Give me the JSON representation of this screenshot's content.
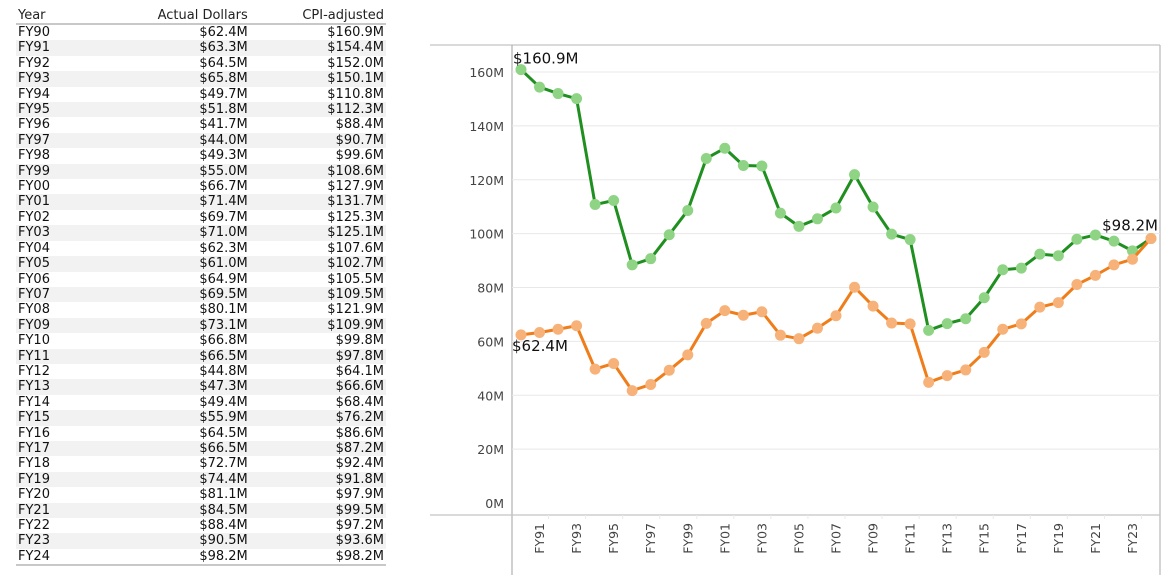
{
  "table": {
    "headers": [
      "Year",
      "Actual Dollars",
      "CPI-adjusted"
    ],
    "rows": [
      [
        "FY90",
        "$62.4M",
        "$160.9M"
      ],
      [
        "FY91",
        "$63.3M",
        "$154.4M"
      ],
      [
        "FY92",
        "$64.5M",
        "$152.0M"
      ],
      [
        "FY93",
        "$65.8M",
        "$150.1M"
      ],
      [
        "FY94",
        "$49.7M",
        "$110.8M"
      ],
      [
        "FY95",
        "$51.8M",
        "$112.3M"
      ],
      [
        "FY96",
        "$41.7M",
        "$88.4M"
      ],
      [
        "FY97",
        "$44.0M",
        "$90.7M"
      ],
      [
        "FY98",
        "$49.3M",
        "$99.6M"
      ],
      [
        "FY99",
        "$55.0M",
        "$108.6M"
      ],
      [
        "FY00",
        "$66.7M",
        "$127.9M"
      ],
      [
        "FY01",
        "$71.4M",
        "$131.7M"
      ],
      [
        "FY02",
        "$69.7M",
        "$125.3M"
      ],
      [
        "FY03",
        "$71.0M",
        "$125.1M"
      ],
      [
        "FY04",
        "$62.3M",
        "$107.6M"
      ],
      [
        "FY05",
        "$61.0M",
        "$102.7M"
      ],
      [
        "FY06",
        "$64.9M",
        "$105.5M"
      ],
      [
        "FY07",
        "$69.5M",
        "$109.5M"
      ],
      [
        "FY08",
        "$80.1M",
        "$121.9M"
      ],
      [
        "FY09",
        "$73.1M",
        "$109.9M"
      ],
      [
        "FY10",
        "$66.8M",
        "$99.8M"
      ],
      [
        "FY11",
        "$66.5M",
        "$97.8M"
      ],
      [
        "FY12",
        "$44.8M",
        "$64.1M"
      ],
      [
        "FY13",
        "$47.3M",
        "$66.6M"
      ],
      [
        "FY14",
        "$49.4M",
        "$68.4M"
      ],
      [
        "FY15",
        "$55.9M",
        "$76.2M"
      ],
      [
        "FY16",
        "$64.5M",
        "$86.6M"
      ],
      [
        "FY17",
        "$66.5M",
        "$87.2M"
      ],
      [
        "FY18",
        "$72.7M",
        "$92.4M"
      ],
      [
        "FY19",
        "$74.4M",
        "$91.8M"
      ],
      [
        "FY20",
        "$81.1M",
        "$97.9M"
      ],
      [
        "FY21",
        "$84.5M",
        "$99.5M"
      ],
      [
        "FY22",
        "$88.4M",
        "$97.2M"
      ],
      [
        "FY23",
        "$90.5M",
        "$93.6M"
      ],
      [
        "FY24",
        "$98.2M",
        "$98.2M"
      ]
    ]
  },
  "chart_data": {
    "type": "line",
    "title": "",
    "xlabel": "",
    "ylabel": "",
    "x": [
      "FY90",
      "FY91",
      "FY92",
      "FY93",
      "FY94",
      "FY95",
      "FY96",
      "FY97",
      "FY98",
      "FY99",
      "FY00",
      "FY01",
      "FY02",
      "FY03",
      "FY04",
      "FY05",
      "FY06",
      "FY07",
      "FY08",
      "FY09",
      "FY10",
      "FY11",
      "FY12",
      "FY13",
      "FY14",
      "FY15",
      "FY16",
      "FY17",
      "FY18",
      "FY19",
      "FY20",
      "FY21",
      "FY22",
      "FY23",
      "FY24"
    ],
    "x_tick_labels": [
      "FY91",
      "FY93",
      "FY95",
      "FY97",
      "FY99",
      "FY01",
      "FY03",
      "FY05",
      "FY07",
      "FY09",
      "FY11",
      "FY13",
      "FY15",
      "FY17",
      "FY19",
      "FY21",
      "FY23"
    ],
    "ylim": [
      0,
      160
    ],
    "y_ticks": [
      0,
      20,
      40,
      60,
      80,
      100,
      120,
      140,
      160
    ],
    "y_tick_labels": [
      "0M",
      "20M",
      "40M",
      "60M",
      "80M",
      "100M",
      "120M",
      "140M",
      "160M"
    ],
    "grid": true,
    "legend": "none",
    "series": [
      {
        "name": "CPI-adjusted",
        "line_color": "#1f8f1f",
        "marker_color": "#8fd485",
        "values": [
          160.9,
          154.4,
          152.0,
          150.1,
          110.8,
          112.3,
          88.4,
          90.7,
          99.6,
          108.6,
          127.9,
          131.7,
          125.3,
          125.1,
          107.6,
          102.7,
          105.5,
          109.5,
          121.9,
          109.9,
          99.8,
          97.8,
          64.1,
          66.6,
          68.4,
          76.2,
          86.6,
          87.2,
          92.4,
          91.8,
          97.9,
          99.5,
          97.2,
          93.6,
          98.2
        ]
      },
      {
        "name": "Actual Dollars",
        "line_color": "#ef7d1a",
        "marker_color": "#f7b27a",
        "values": [
          62.4,
          63.3,
          64.5,
          65.8,
          49.7,
          51.8,
          41.7,
          44.0,
          49.3,
          55.0,
          66.7,
          71.4,
          69.7,
          71.0,
          62.3,
          61.0,
          64.9,
          69.5,
          80.1,
          73.1,
          66.8,
          66.5,
          44.8,
          47.3,
          49.4,
          55.9,
          64.5,
          66.5,
          72.7,
          74.4,
          81.1,
          84.5,
          88.4,
          90.5,
          98.2
        ]
      }
    ],
    "annotations": [
      {
        "text": "$160.9M",
        "series": "CPI-adjusted",
        "x": "FY90"
      },
      {
        "text": "$62.4M",
        "series": "Actual Dollars",
        "x": "FY90"
      },
      {
        "text": "$98.2M",
        "series": "CPI-adjusted",
        "x": "FY24"
      }
    ]
  }
}
